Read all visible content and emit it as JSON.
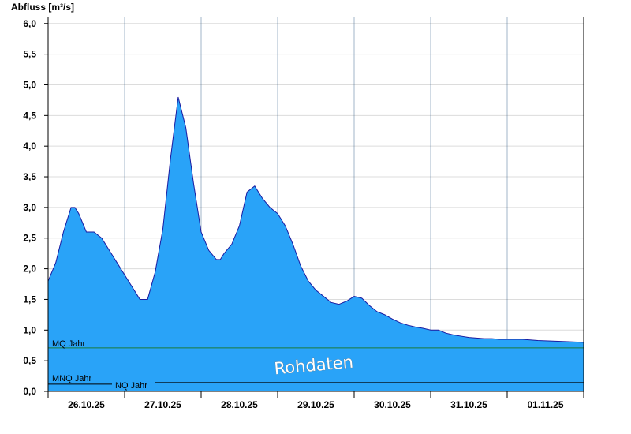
{
  "chart_data": {
    "type": "area",
    "ylabel": "Abfluss [m³/s]",
    "ylim": [
      0,
      6.1
    ],
    "y_ticks": [
      "0,0",
      "0,5",
      "1,0",
      "1,5",
      "2,0",
      "2,5",
      "3,0",
      "3,5",
      "4,0",
      "4,5",
      "5,0",
      "5,5",
      "6,0"
    ],
    "y_tick_values": [
      0,
      0.5,
      1.0,
      1.5,
      2.0,
      2.5,
      3.0,
      3.5,
      4.0,
      4.5,
      5.0,
      5.5,
      6.0
    ],
    "x_range_days": [
      0,
      7
    ],
    "x_ticks": [
      "26.10.25",
      "27.10.25",
      "28.10.25",
      "29.10.25",
      "30.10.25",
      "31.10.25",
      "01.11.25"
    ],
    "grid": true,
    "fill_color": "#29a3f8",
    "line_color": "#1a1aa0",
    "watermark": "Rohdaten",
    "reference_lines": [
      {
        "name": "MQ Jahr",
        "value": 0.71,
        "color": "#1a7a3a"
      },
      {
        "name": "MNQ Jahr",
        "value": 0.13,
        "color": "#000000"
      },
      {
        "name": "NQ Jahr",
        "value": 0.13,
        "color": "#000000"
      }
    ],
    "series": [
      {
        "x": [
          0,
          0.1,
          0.2,
          0.3,
          0.35,
          0.4,
          0.5,
          0.6,
          0.7,
          0.8,
          0.9,
          1.0,
          1.1,
          1.2,
          1.3,
          1.4,
          1.5,
          1.6,
          1.7,
          1.8,
          1.9,
          2.0,
          2.1,
          2.2,
          2.25,
          2.3,
          2.4,
          2.5,
          2.6,
          2.7,
          2.8,
          2.9,
          3.0,
          3.1,
          3.2,
          3.3,
          3.4,
          3.5,
          3.6,
          3.7,
          3.8,
          3.9,
          4.0,
          4.1,
          4.2,
          4.3,
          4.4,
          4.5,
          4.6,
          4.7,
          4.8,
          4.9,
          5.0,
          5.1,
          5.2,
          5.3,
          5.4,
          5.5,
          5.6,
          5.7,
          5.8,
          5.9,
          6.0,
          6.2,
          6.4,
          6.6,
          6.8,
          7.0
        ],
        "values": [
          1.8,
          2.1,
          2.6,
          3.0,
          3.0,
          2.9,
          2.6,
          2.6,
          2.5,
          2.3,
          2.1,
          1.9,
          1.7,
          1.5,
          1.5,
          1.95,
          2.65,
          3.8,
          4.8,
          4.3,
          3.4,
          2.6,
          2.3,
          2.15,
          2.15,
          2.25,
          2.4,
          2.7,
          3.25,
          3.35,
          3.15,
          3.0,
          2.9,
          2.7,
          2.4,
          2.05,
          1.8,
          1.65,
          1.55,
          1.45,
          1.42,
          1.47,
          1.55,
          1.52,
          1.4,
          1.3,
          1.25,
          1.18,
          1.12,
          1.08,
          1.05,
          1.03,
          1.0,
          1.0,
          0.95,
          0.92,
          0.9,
          0.88,
          0.87,
          0.86,
          0.86,
          0.85,
          0.85,
          0.85,
          0.83,
          0.82,
          0.81,
          0.8
        ]
      }
    ]
  }
}
